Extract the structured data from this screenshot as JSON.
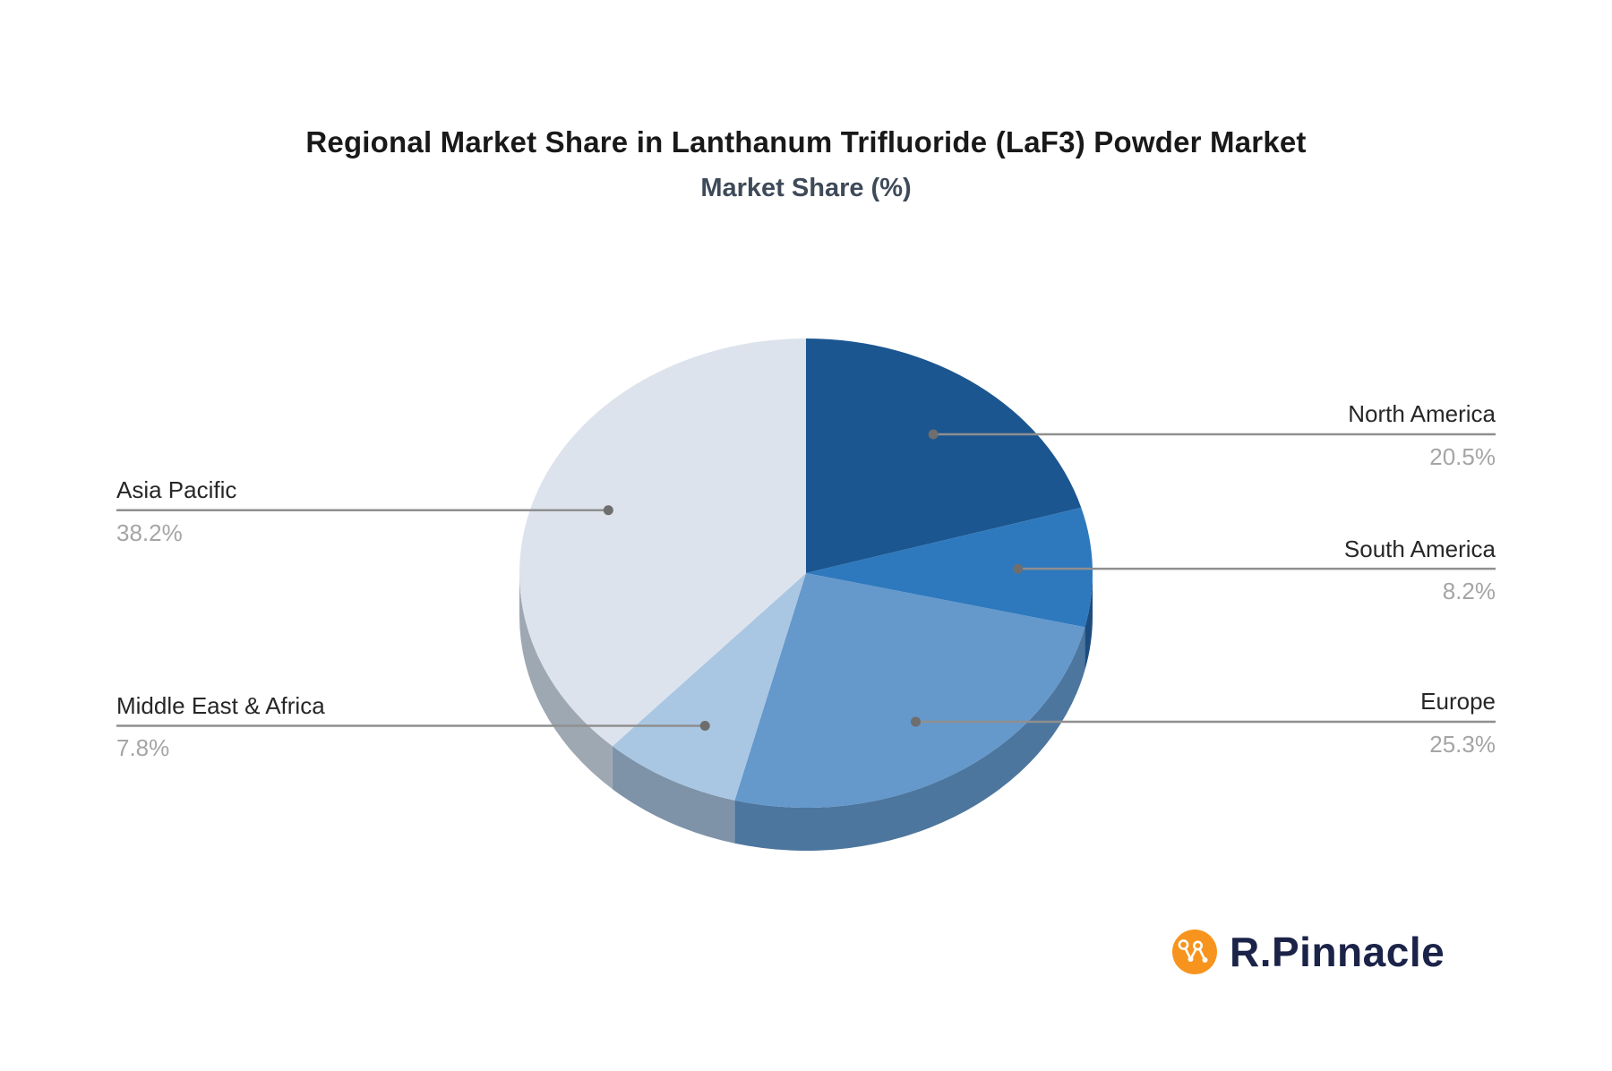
{
  "chart_data": {
    "type": "pie",
    "effect": "3d",
    "title": "Regional Market Share in Lanthanum Trifluoride (LaF3) Powder Market",
    "subtitle": "Market Share (%)",
    "unit": "%",
    "start_angle": "top",
    "direction": "clockwise",
    "legend": "none",
    "slices": [
      {
        "label": "North America",
        "value": 20.5,
        "display": "20.5%",
        "color": "#1b5691",
        "side_color": "#143f6b",
        "label_side": "right"
      },
      {
        "label": "South America",
        "value": 8.2,
        "display": "8.2%",
        "color": "#2e79bd",
        "side_color": "#1d4d7e",
        "label_side": "right"
      },
      {
        "label": "Europe",
        "value": 25.3,
        "display": "25.3%",
        "color": "#6598cb",
        "side_color": "#4c769e",
        "label_side": "right"
      },
      {
        "label": "Middle East & Africa",
        "value": 7.8,
        "display": "7.8%",
        "color": "#a9c7e3",
        "side_color": "#7e93a8",
        "label_side": "left"
      },
      {
        "label": "Asia Pacific",
        "value": 38.2,
        "display": "38.2%",
        "color": "#dde3ed",
        "side_color": "#9ea8b3",
        "label_side": "left"
      }
    ]
  },
  "logo": {
    "text": "R.Pinnacle",
    "icon": "network-nodes-icon",
    "circle_color": "#f7941d",
    "text_color": "#1b2348"
  },
  "styles": {
    "background": "#ffffff",
    "title_color": "#191919",
    "subtitle_color": "#3e4a59",
    "label_name_color": "#272727",
    "label_value_color": "#a5a5a5",
    "connector_color": "#8f8f8f",
    "dot_color": "#6e6e6e"
  }
}
